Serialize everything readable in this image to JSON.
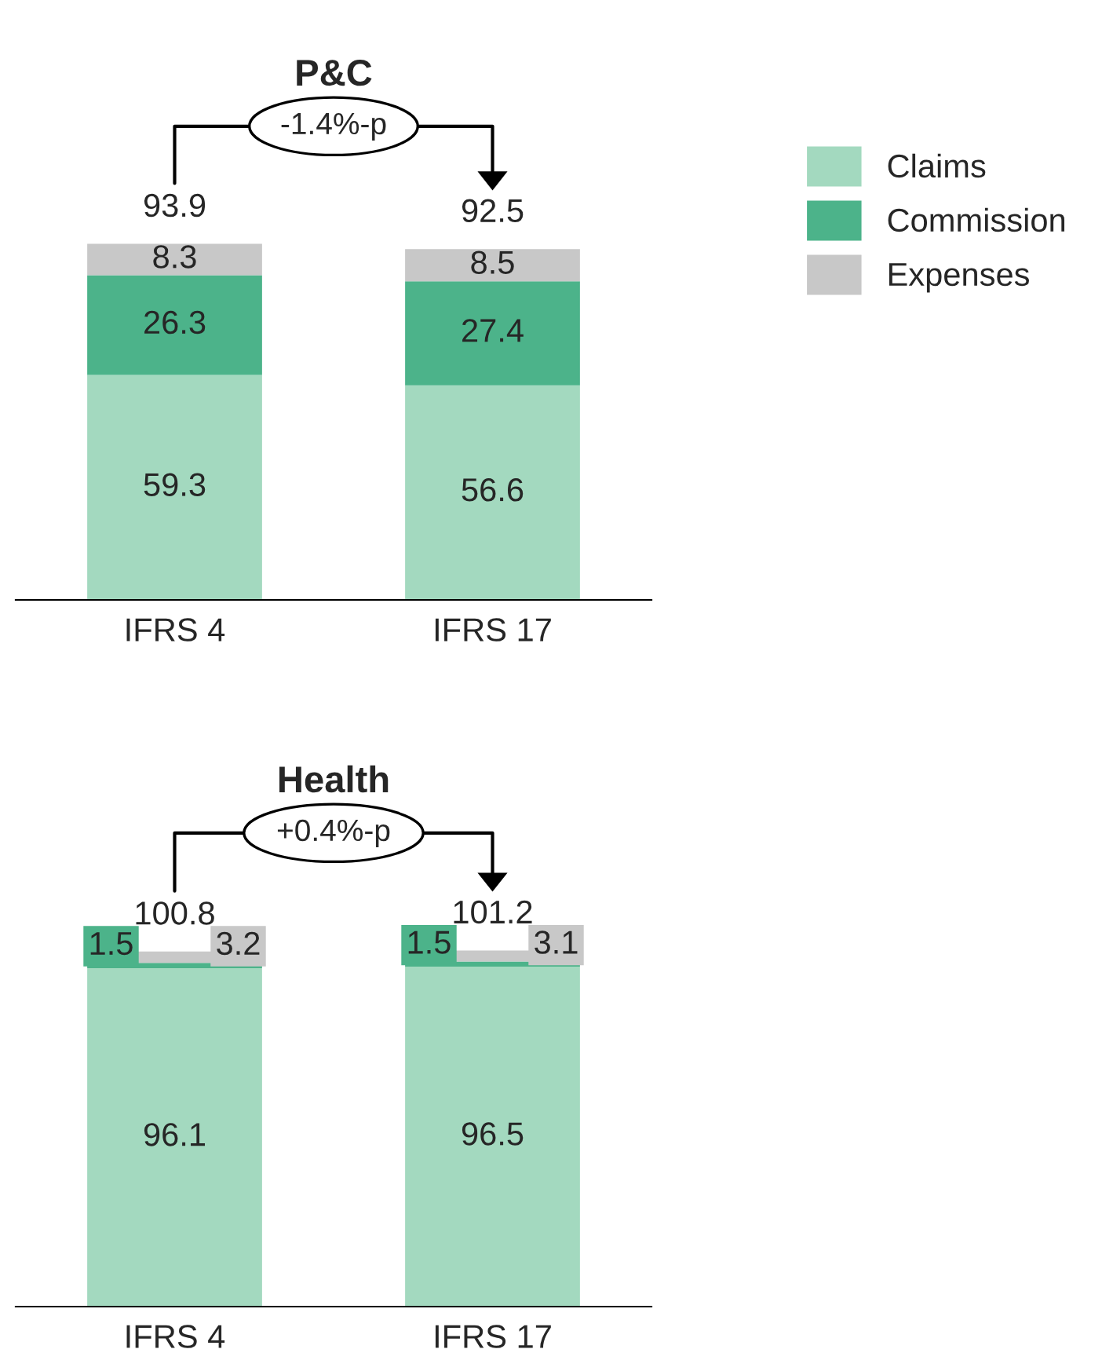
{
  "chart_data": [
    {
      "type": "bar",
      "title": "P&C",
      "categories": [
        "IFRS 4",
        "IFRS 17"
      ],
      "stacked": true,
      "data_labels": true,
      "totals": [
        "93.9",
        "92.5"
      ],
      "annotations": [
        "-1.4%-p"
      ],
      "legend": "right",
      "tick_labels": "x",
      "series": [
        {
          "name": "Claims",
          "color": "#a3d9bf",
          "values": [
            59.3,
            56.6
          ]
        },
        {
          "name": "Commission",
          "color": "#4cb38a",
          "values": [
            26.3,
            27.4
          ]
        },
        {
          "name": "Expenses",
          "color": "#c8c8c8",
          "values": [
            8.3,
            8.5
          ]
        }
      ]
    },
    {
      "type": "bar",
      "title": "Health",
      "categories": [
        "IFRS 4",
        "IFRS 17"
      ],
      "stacked": true,
      "data_labels": true,
      "totals": [
        "100.8",
        "101.2"
      ],
      "annotations": [
        "+0.4%-p"
      ],
      "tick_labels": "x",
      "series": [
        {
          "color": "#a3d9bf",
          "values": [
            96.1,
            96.5
          ]
        },
        {
          "color": "#4cb38a",
          "values": [
            1.5,
            1.5
          ]
        },
        {
          "color": "#c8c8c8",
          "values": [
            3.2,
            3.1
          ]
        }
      ]
    }
  ]
}
